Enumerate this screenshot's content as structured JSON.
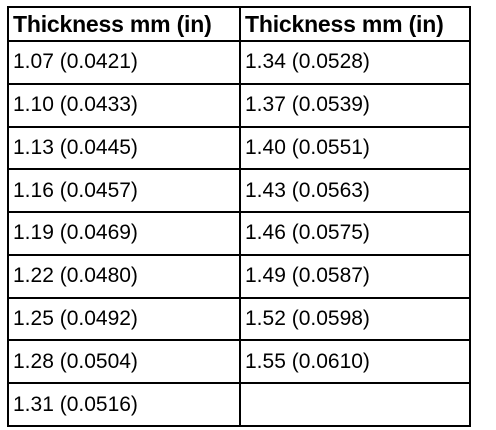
{
  "table": {
    "headers": [
      "Thickness mm (in)",
      "Thickness mm (in)"
    ],
    "rows": [
      [
        "1.07 (0.0421)",
        "1.34 (0.0528)"
      ],
      [
        "1.10 (0.0433)",
        "1.37 (0.0539)"
      ],
      [
        "1.13 (0.0445)",
        "1.40 (0.0551)"
      ],
      [
        "1.16 (0.0457)",
        "1.43 (0.0563)"
      ],
      [
        "1.19 (0.0469)",
        "1.46 (0.0575)"
      ],
      [
        "1.22 (0.0480)",
        "1.49 (0.0587)"
      ],
      [
        "1.25 (0.0492)",
        "1.52 (0.0598)"
      ],
      [
        "1.28 (0.0504)",
        "1.55 (0.0610)"
      ],
      [
        "1.31 (0.0516)",
        ""
      ]
    ]
  }
}
